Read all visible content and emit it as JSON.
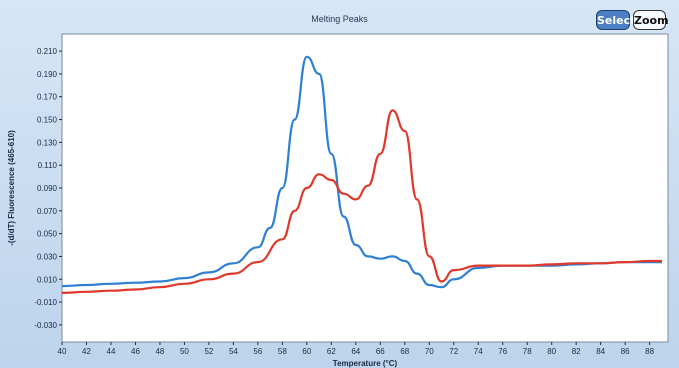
{
  "window": {
    "title": "Melting Peaks"
  },
  "toolbar": {
    "select_label": "Select",
    "zoom_label": "Zoom"
  },
  "colors": {
    "series_a": "#2f7fd3",
    "series_b": "#e1382c",
    "plot_bg": "#ffffff",
    "frame_bg": "#c9ddf1"
  },
  "chart_data": {
    "type": "line",
    "title": "Melting Peaks",
    "xlabel": "Temperature (°C)",
    "ylabel": "-(d/dT) Fluorescence (465-610)",
    "xlim": [
      40,
      89.5
    ],
    "ylim": [
      -0.045,
      0.225
    ],
    "xticks": [
      40,
      42,
      44,
      46,
      48,
      50,
      52,
      54,
      56,
      58,
      60,
      62,
      64,
      66,
      68,
      70,
      72,
      74,
      76,
      78,
      80,
      82,
      84,
      86,
      88
    ],
    "yticks": [
      -0.03,
      -0.01,
      0.01,
      0.03,
      0.05,
      0.07,
      0.09,
      0.11,
      0.13,
      0.15,
      0.17,
      0.19,
      0.21
    ],
    "grid": false,
    "series": [
      {
        "color": "#2f7fd3",
        "x": [
          40,
          42,
          44,
          46,
          48,
          50,
          52,
          54,
          56,
          57,
          58,
          59,
          60,
          61,
          62,
          63,
          64,
          65,
          66,
          67,
          68,
          69,
          70,
          71,
          72,
          74,
          76,
          78,
          80,
          82,
          84,
          86,
          88,
          89
        ],
        "y": [
          0.004,
          0.005,
          0.006,
          0.007,
          0.008,
          0.011,
          0.016,
          0.024,
          0.038,
          0.055,
          0.09,
          0.15,
          0.205,
          0.19,
          0.12,
          0.065,
          0.04,
          0.03,
          0.028,
          0.03,
          0.026,
          0.015,
          0.005,
          0.003,
          0.01,
          0.02,
          0.022,
          0.022,
          0.022,
          0.023,
          0.024,
          0.025,
          0.025,
          0.025
        ]
      },
      {
        "color": "#e1382c",
        "x": [
          40,
          42,
          44,
          46,
          48,
          50,
          52,
          54,
          56,
          58,
          59,
          60,
          61,
          62,
          63,
          64,
          65,
          66,
          67,
          68,
          69,
          70,
          71,
          72,
          74,
          76,
          78,
          80,
          82,
          84,
          86,
          88,
          89
        ],
        "y": [
          -0.002,
          -0.001,
          0.0,
          0.001,
          0.003,
          0.006,
          0.01,
          0.015,
          0.025,
          0.045,
          0.07,
          0.09,
          0.102,
          0.097,
          0.085,
          0.08,
          0.092,
          0.12,
          0.158,
          0.14,
          0.08,
          0.03,
          0.008,
          0.018,
          0.022,
          0.022,
          0.022,
          0.023,
          0.024,
          0.024,
          0.025,
          0.026,
          0.026
        ]
      }
    ]
  }
}
